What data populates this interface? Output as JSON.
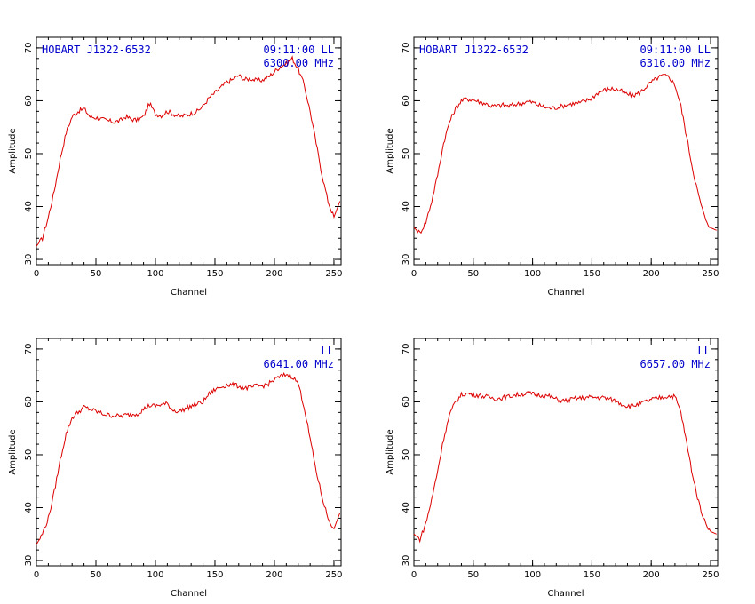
{
  "chart_data": [
    {
      "type": "line",
      "source": "HOBART J1322-6532",
      "time": "09:11:00",
      "polarization": "LL",
      "frequency": "6300.00 MHz",
      "xlabel": "Channel",
      "ylabel": "Amplitude",
      "xlim": [
        0,
        256
      ],
      "ylim": [
        29,
        72
      ],
      "xticks": [
        0,
        50,
        100,
        150,
        200,
        250
      ],
      "yticks": [
        30,
        40,
        50,
        60,
        70
      ],
      "color": "#dd0000",
      "series": [
        {
          "x": [
            0,
            5,
            10,
            15,
            20,
            25,
            30,
            35,
            40,
            45,
            50,
            55,
            60,
            65,
            70,
            75,
            80,
            85,
            90,
            95,
            100,
            105,
            110,
            115,
            120,
            125,
            130,
            135,
            140,
            145,
            150,
            155,
            160,
            165,
            170,
            175,
            180,
            185,
            190,
            195,
            200,
            205,
            210,
            215,
            220,
            225,
            230,
            235,
            240,
            245,
            250,
            255
          ],
          "y": [
            32.5,
            34,
            38,
            43,
            49,
            54,
            57,
            58,
            58.5,
            57,
            56.8,
            56.5,
            56.2,
            56,
            56.2,
            57,
            56.5,
            56.3,
            57,
            59.5,
            57.5,
            57.2,
            58,
            57.5,
            57,
            57.2,
            57.6,
            58,
            59,
            60.5,
            61.5,
            62.5,
            63.5,
            64,
            64.8,
            64,
            64.2,
            63.8,
            63.9,
            64.5,
            65.5,
            66.5,
            67,
            68,
            66,
            63,
            58,
            52,
            46,
            41,
            38,
            41
          ]
        }
      ]
    },
    {
      "type": "line",
      "source": "HOBART J1322-6532",
      "time": "09:11:00",
      "polarization": "LL",
      "frequency": "6316.00 MHz",
      "xlabel": "Channel",
      "ylabel": "Amplitude",
      "xlim": [
        0,
        256
      ],
      "ylim": [
        29,
        72
      ],
      "xticks": [
        0,
        50,
        100,
        150,
        200,
        250
      ],
      "yticks": [
        30,
        40,
        50,
        60,
        70
      ],
      "color": "#dd0000",
      "series": [
        {
          "x": [
            0,
            5,
            10,
            15,
            20,
            25,
            30,
            35,
            40,
            45,
            50,
            55,
            60,
            65,
            70,
            75,
            80,
            85,
            90,
            95,
            100,
            105,
            110,
            115,
            120,
            125,
            130,
            135,
            140,
            145,
            150,
            155,
            160,
            165,
            170,
            175,
            180,
            185,
            190,
            195,
            200,
            205,
            210,
            215,
            220,
            225,
            230,
            235,
            240,
            245,
            250,
            255
          ],
          "y": [
            36,
            35,
            37,
            41,
            46,
            52,
            56,
            58.5,
            60,
            60.3,
            60.2,
            59.8,
            59.5,
            59,
            59,
            59.2,
            59,
            59.3,
            59.5,
            59.8,
            59.7,
            59.2,
            58.8,
            58.6,
            58.7,
            59,
            59.3,
            59.5,
            59.6,
            60,
            60.5,
            61.5,
            62,
            62.3,
            62.2,
            61.8,
            61.2,
            61,
            61.5,
            62.5,
            63.5,
            64.3,
            64.8,
            64.5,
            63,
            59,
            53,
            47,
            42,
            38,
            36,
            35.5
          ]
        }
      ]
    },
    {
      "type": "line",
      "polarization": "LL",
      "frequency": "6641.00 MHz",
      "xlabel": "Channel",
      "ylabel": "Amplitude",
      "xlim": [
        0,
        256
      ],
      "ylim": [
        29,
        72
      ],
      "xticks": [
        0,
        50,
        100,
        150,
        200,
        250
      ],
      "yticks": [
        30,
        40,
        50,
        60,
        70
      ],
      "color": "#dd0000",
      "series": [
        {
          "x": [
            0,
            5,
            10,
            15,
            20,
            25,
            30,
            35,
            40,
            45,
            50,
            55,
            60,
            65,
            70,
            75,
            80,
            85,
            90,
            95,
            100,
            105,
            110,
            115,
            120,
            125,
            130,
            135,
            140,
            145,
            150,
            155,
            160,
            165,
            170,
            175,
            180,
            185,
            190,
            195,
            200,
            205,
            210,
            215,
            220,
            225,
            230,
            235,
            240,
            245,
            250,
            255
          ],
          "y": [
            33,
            35,
            38,
            43,
            49,
            54,
            57,
            58,
            59,
            58.6,
            58.2,
            57.8,
            57.5,
            57.4,
            57.3,
            57.5,
            57.6,
            57.8,
            58.6,
            59.3,
            59.2,
            59.5,
            59.6,
            58.4,
            58.2,
            58.7,
            59.2,
            59.6,
            60,
            61.5,
            62.3,
            62.8,
            63.2,
            63.2,
            63,
            62.6,
            62.7,
            63,
            63,
            63.4,
            64.2,
            64.8,
            65.2,
            64.8,
            63.5,
            59,
            53,
            47,
            42,
            38,
            36,
            39
          ]
        }
      ]
    },
    {
      "type": "line",
      "polarization": "LL",
      "frequency": "6657.00 MHz",
      "xlabel": "Channel",
      "ylabel": "Amplitude",
      "xlim": [
        0,
        256
      ],
      "ylim": [
        29,
        72
      ],
      "xticks": [
        0,
        50,
        100,
        150,
        200,
        250
      ],
      "yticks": [
        30,
        40,
        50,
        60,
        70
      ],
      "color": "#dd0000",
      "series": [
        {
          "x": [
            0,
            5,
            10,
            15,
            20,
            25,
            30,
            35,
            40,
            45,
            50,
            55,
            60,
            65,
            70,
            75,
            80,
            85,
            90,
            95,
            100,
            105,
            110,
            115,
            120,
            125,
            130,
            135,
            140,
            145,
            150,
            155,
            160,
            165,
            170,
            175,
            180,
            185,
            190,
            195,
            200,
            205,
            210,
            215,
            220,
            225,
            230,
            235,
            240,
            245,
            250,
            255
          ],
          "y": [
            35,
            34,
            37,
            41.5,
            47,
            53,
            57.5,
            60,
            61.3,
            61.6,
            61.4,
            61.2,
            61,
            60.8,
            60.6,
            60.8,
            61,
            61.3,
            61.4,
            61.6,
            61.5,
            61.3,
            61.2,
            61,
            60.5,
            60.2,
            60.3,
            60.6,
            60.7,
            60.8,
            60.9,
            60.8,
            60.8,
            60.5,
            60.2,
            59.6,
            59.2,
            59.3,
            59.6,
            60,
            60.4,
            60.7,
            60.9,
            61.1,
            61,
            58,
            52,
            46,
            41,
            37.5,
            35.5,
            35
          ]
        }
      ]
    }
  ]
}
